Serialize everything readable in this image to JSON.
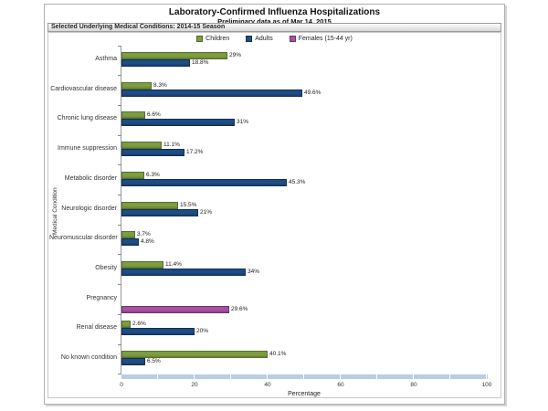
{
  "page": {
    "title": "Laboratory-Confirmed Influenza Hospitalizations",
    "subtitle": "Preliminary data as of Mar 14, 2015"
  },
  "strip": {
    "label": "Selected Underlying Medical Conditions: 2014-15 Season"
  },
  "legend": [
    {
      "label": "Children",
      "color": "#7E9D40"
    },
    {
      "label": "Adults",
      "color": "#1E4C84"
    },
    {
      "label": "Females (15-44 yr)",
      "color": "#A651A1"
    }
  ],
  "axis": {
    "x_ticks": [
      "0",
      "20",
      "40",
      "60",
      "80",
      "100"
    ],
    "x_tick_values": [
      0,
      20,
      40,
      60,
      80,
      100
    ],
    "xlabel": "Percentage",
    "ylabel": "Medical Condition"
  },
  "colors": {
    "children": "#7E9D40",
    "children_border": "#55702C",
    "adults": "#1E4C84",
    "adults_border": "#122F55",
    "females": "#A651A1",
    "females_border": "#6E356B",
    "scrollband": "#B9CDE4"
  },
  "chart_data": {
    "type": "bar",
    "orientation": "horizontal",
    "title": "Laboratory-Confirmed Influenza Hospitalizations",
    "subtitle": "Preliminary data as of Mar 14, 2015",
    "xlabel": "Percentage",
    "ylabel": "Medical Condition",
    "xlim": [
      0,
      100
    ],
    "legend_position": "top",
    "grid": false,
    "categories": [
      "Asthma",
      "Cardiovascular disease",
      "Chronic lung disease",
      "Immune suppression",
      "Metabolic disorder",
      "Neurologic disorder",
      "Neuromuscular disorder",
      "Obesity",
      "Pregnancy",
      "Renal disease",
      "No known condition"
    ],
    "series": [
      {
        "name": "Children",
        "color": "#7E9D40",
        "values": [
          29,
          8.3,
          6.6,
          11.1,
          6.3,
          15.5,
          3.7,
          11.4,
          null,
          2.6,
          40.1
        ],
        "labels": [
          "29%",
          "8.3%",
          "6.6%",
          "11.1%",
          "6.3%",
          "15.5%",
          "3.7%",
          "11.4%",
          null,
          "2.6%",
          "40.1%"
        ]
      },
      {
        "name": "Adults",
        "color": "#1E4C84",
        "values": [
          18.8,
          49.6,
          31,
          17.2,
          45.3,
          21,
          4.8,
          34,
          null,
          20,
          6.5
        ],
        "labels": [
          "18.8%",
          "49.6%",
          "31%",
          "17.2%",
          "45.3%",
          "21%",
          "4.8%",
          "34%",
          null,
          "20%",
          "6.5%"
        ]
      },
      {
        "name": "Females (15-44 yr)",
        "color": "#A651A1",
        "values": [
          null,
          null,
          null,
          null,
          null,
          null,
          null,
          null,
          29.6,
          null,
          null
        ],
        "labels": [
          null,
          null,
          null,
          null,
          null,
          null,
          null,
          null,
          "29.6%",
          null,
          null
        ]
      }
    ]
  }
}
